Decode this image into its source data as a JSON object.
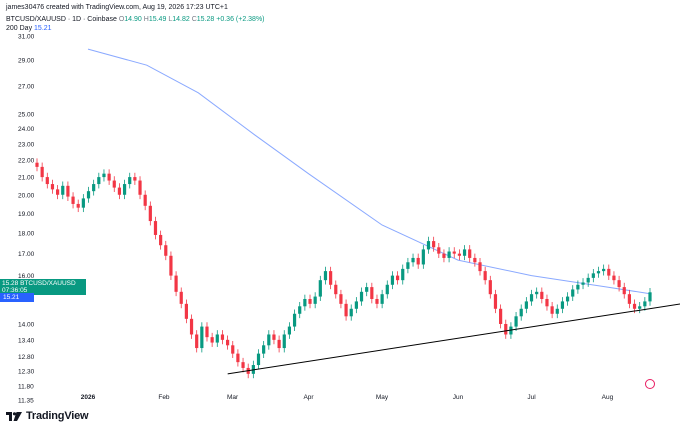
{
  "caption": "james30476 created with TradingView.com, Aug 19, 2026 17:23 UTC+1",
  "symbol_text": "BTCUSD/XAUUSD · 1D · Coinbase",
  "ohlc": [
    {
      "label": "O",
      "value": "14.90"
    },
    {
      "label": "H",
      "value": "15.49"
    },
    {
      "label": "L",
      "value": "14.82"
    },
    {
      "label": "C",
      "value": "15.28"
    }
  ],
  "change": "+0.36 (+2.38%)",
  "ma_label": "200 Day",
  "ma_value": "15.21",
  "price_tag": {
    "price": "15.28",
    "symbol": "BTCUSD/XAUUSD",
    "countdown": "07:36:05"
  },
  "ma_tag": "15.21",
  "logo_text": "TradingView",
  "colors": {
    "up": "#089981",
    "down": "#f23645",
    "ma": "#2962ff",
    "trendline": "#000000"
  },
  "chart_data": {
    "type": "candlestick",
    "y_ticks": [
      "31.00",
      "29.00",
      "27.00",
      "25.00",
      "24.00",
      "23.00",
      "22.00",
      "21.00",
      "20.00",
      "19.00",
      "18.00",
      "17.00",
      "16.00",
      "15.00",
      "14.00",
      "13.40",
      "12.80",
      "12.30",
      "11.80",
      "11.35"
    ],
    "x_ticks": [
      "2026",
      "Feb",
      "Mar",
      "Apr",
      "May",
      "Jun",
      "Jul",
      "Aug"
    ],
    "ylim": [
      11.2,
      32.5
    ],
    "y_scale": "log",
    "grid": false,
    "close_series": [
      21.6,
      21.0,
      20.6,
      20.3,
      20.0,
      20.5,
      19.9,
      19.5,
      19.3,
      19.8,
      20.2,
      20.6,
      21.0,
      21.2,
      20.8,
      20.4,
      20.0,
      20.6,
      21.0,
      20.8,
      20.0,
      19.4,
      18.6,
      17.9,
      17.4,
      16.9,
      16.0,
      15.3,
      14.8,
      14.2,
      13.6,
      13.1,
      13.9,
      13.5,
      13.3,
      13.6,
      13.4,
      13.2,
      12.9,
      12.6,
      12.4,
      12.2,
      12.5,
      12.9,
      13.2,
      13.6,
      13.4,
      13.1,
      13.6,
      13.9,
      14.4,
      14.7,
      15.0,
      14.8,
      15.1,
      15.8,
      16.2,
      15.6,
      15.2,
      14.8,
      14.3,
      14.6,
      14.9,
      15.3,
      15.5,
      15.0,
      14.8,
      15.2,
      15.6,
      16.0,
      15.8,
      16.3,
      16.6,
      16.8,
      16.5,
      17.2,
      17.6,
      17.3,
      17.0,
      16.8,
      17.1,
      17.0,
      16.9,
      17.2,
      16.8,
      16.6,
      16.2,
      15.8,
      15.2,
      14.6,
      14.0,
      13.6,
      13.9,
      14.3,
      14.6,
      14.9,
      15.2,
      15.3,
      15.0,
      14.7,
      14.4,
      14.6,
      14.9,
      15.1,
      15.4,
      15.6,
      15.7,
      15.9,
      16.1,
      16.2,
      16.3,
      16.0,
      15.8,
      15.5,
      15.2,
      14.8,
      14.6,
      14.7,
      14.9,
      15.28
    ],
    "ma200": [
      {
        "x": "2026-01-01",
        "y": 29.9
      },
      {
        "x": "2026-01-25",
        "y": 28.6
      },
      {
        "x": "2026-02-15",
        "y": 26.5
      },
      {
        "x": "2026-03-10",
        "y": 23.6
      },
      {
        "x": "2026-04-01",
        "y": 21.2
      },
      {
        "x": "2026-05-01",
        "y": 18.4
      },
      {
        "x": "2026-06-01",
        "y": 16.7
      },
      {
        "x": "2026-07-01",
        "y": 16.0
      },
      {
        "x": "2026-08-01",
        "y": 15.5
      },
      {
        "x": "2026-08-19",
        "y": 15.21
      }
    ],
    "trendline": [
      {
        "x": "2026-02-27",
        "y": 12.2
      },
      {
        "x": "2026-08-31",
        "y": 14.8
      }
    ]
  }
}
